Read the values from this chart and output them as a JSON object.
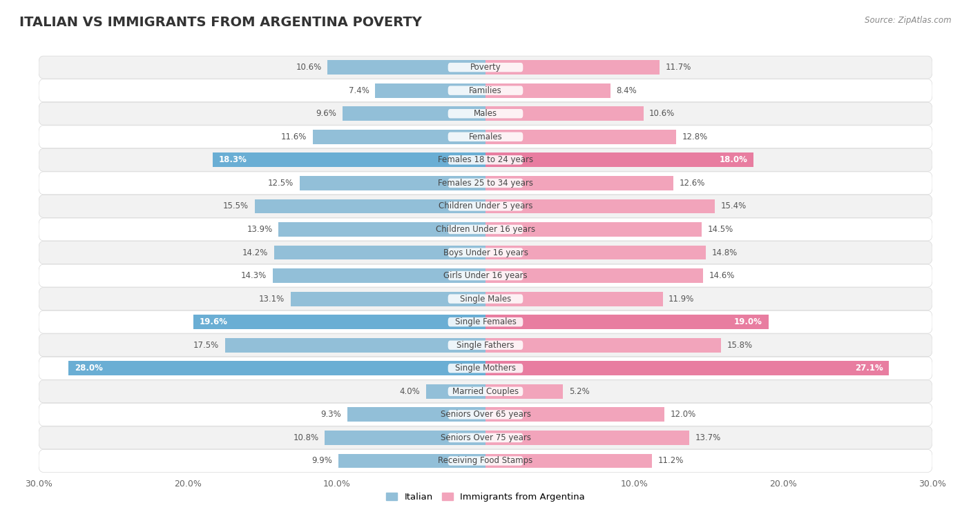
{
  "title": "ITALIAN VS IMMIGRANTS FROM ARGENTINA POVERTY",
  "source": "Source: ZipAtlas.com",
  "categories": [
    "Poverty",
    "Families",
    "Males",
    "Females",
    "Females 18 to 24 years",
    "Females 25 to 34 years",
    "Children Under 5 years",
    "Children Under 16 years",
    "Boys Under 16 years",
    "Girls Under 16 years",
    "Single Males",
    "Single Females",
    "Single Fathers",
    "Single Mothers",
    "Married Couples",
    "Seniors Over 65 years",
    "Seniors Over 75 years",
    "Receiving Food Stamps"
  ],
  "italian_values": [
    10.6,
    7.4,
    9.6,
    11.6,
    18.3,
    12.5,
    15.5,
    13.9,
    14.2,
    14.3,
    13.1,
    19.6,
    17.5,
    28.0,
    4.0,
    9.3,
    10.8,
    9.9
  ],
  "argentina_values": [
    11.7,
    8.4,
    10.6,
    12.8,
    18.0,
    12.6,
    15.4,
    14.5,
    14.8,
    14.6,
    11.9,
    19.0,
    15.8,
    27.1,
    5.2,
    12.0,
    13.7,
    11.2
  ],
  "italian_color": "#92bfd8",
  "argentina_color": "#f2a4bb",
  "italian_highlight_color": "#6aaed4",
  "argentina_highlight_color": "#e87da0",
  "highlight_rows": [
    4,
    11,
    13
  ],
  "bg_color": "#ffffff",
  "row_even_color": "#f2f2f2",
  "row_odd_color": "#ffffff",
  "row_border_color": "#d8d8d8",
  "max_value": 30.0,
  "bar_height": 0.62,
  "legend_italian": "Italian",
  "legend_argentina": "Immigrants from Argentina",
  "title_fontsize": 14,
  "label_fontsize": 8.5,
  "value_fontsize": 8.5,
  "axis_tick_fontsize": 9
}
